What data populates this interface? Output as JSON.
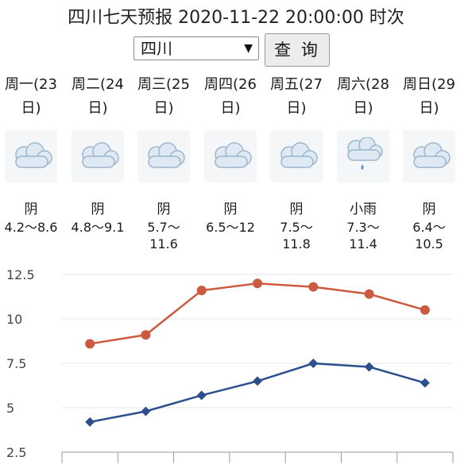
{
  "header": {
    "title": "四川七天预报 2020-11-22 20:00:00 时次"
  },
  "controls": {
    "region_selected": "四川",
    "query_label": "查 询"
  },
  "days": [
    {
      "name_line1": "周一(23",
      "name_line2": "日)",
      "condition": "阴",
      "temp_line1": "4.2～8.6",
      "temp_line2": "",
      "icon": "cloudy-icon"
    },
    {
      "name_line1": "周二(24",
      "name_line2": "日)",
      "condition": "阴",
      "temp_line1": "4.8～9.1",
      "temp_line2": "",
      "icon": "cloudy-icon"
    },
    {
      "name_line1": "周三(25",
      "name_line2": "日)",
      "condition": "阴",
      "temp_line1": "5.7～",
      "temp_line2": "11.6",
      "icon": "cloudy-icon"
    },
    {
      "name_line1": "周四(26",
      "name_line2": "日)",
      "condition": "阴",
      "temp_line1": "6.5～12",
      "temp_line2": "",
      "icon": "cloudy-icon"
    },
    {
      "name_line1": "周五(27",
      "name_line2": "日)",
      "condition": "阴",
      "temp_line1": "7.5～",
      "temp_line2": "11.8",
      "icon": "cloudy-icon"
    },
    {
      "name_line1": "周六(28",
      "name_line2": "日)",
      "condition": "小雨",
      "temp_line1": "7.3～",
      "temp_line2": "11.4",
      "icon": "light-rain-icon"
    },
    {
      "name_line1": "周日(29",
      "name_line2": "日)",
      "condition": "阴",
      "temp_line1": "6.4～",
      "temp_line2": "10.5",
      "icon": "cloudy-icon"
    }
  ],
  "chart_data": {
    "type": "line",
    "x": [
      "周一",
      "周二",
      "周三",
      "周四",
      "周五",
      "周六",
      "周日"
    ],
    "series": [
      {
        "values": [
          8.6,
          9.1,
          11.6,
          12,
          11.8,
          11.4,
          10.5
        ],
        "color": "#cc5a40",
        "marker": "circle"
      },
      {
        "values": [
          4.2,
          4.8,
          5.7,
          6.5,
          7.5,
          7.3,
          6.4
        ],
        "color": "#2b4e8c",
        "marker": "diamond"
      }
    ],
    "yticks": [
      "2.5",
      "5",
      "7.5",
      "10",
      "12.5"
    ],
    "ylim": [
      2.5,
      12.5
    ],
    "grid": true,
    "grid_color": "#e6e6e6",
    "axis_color": "#999999"
  }
}
